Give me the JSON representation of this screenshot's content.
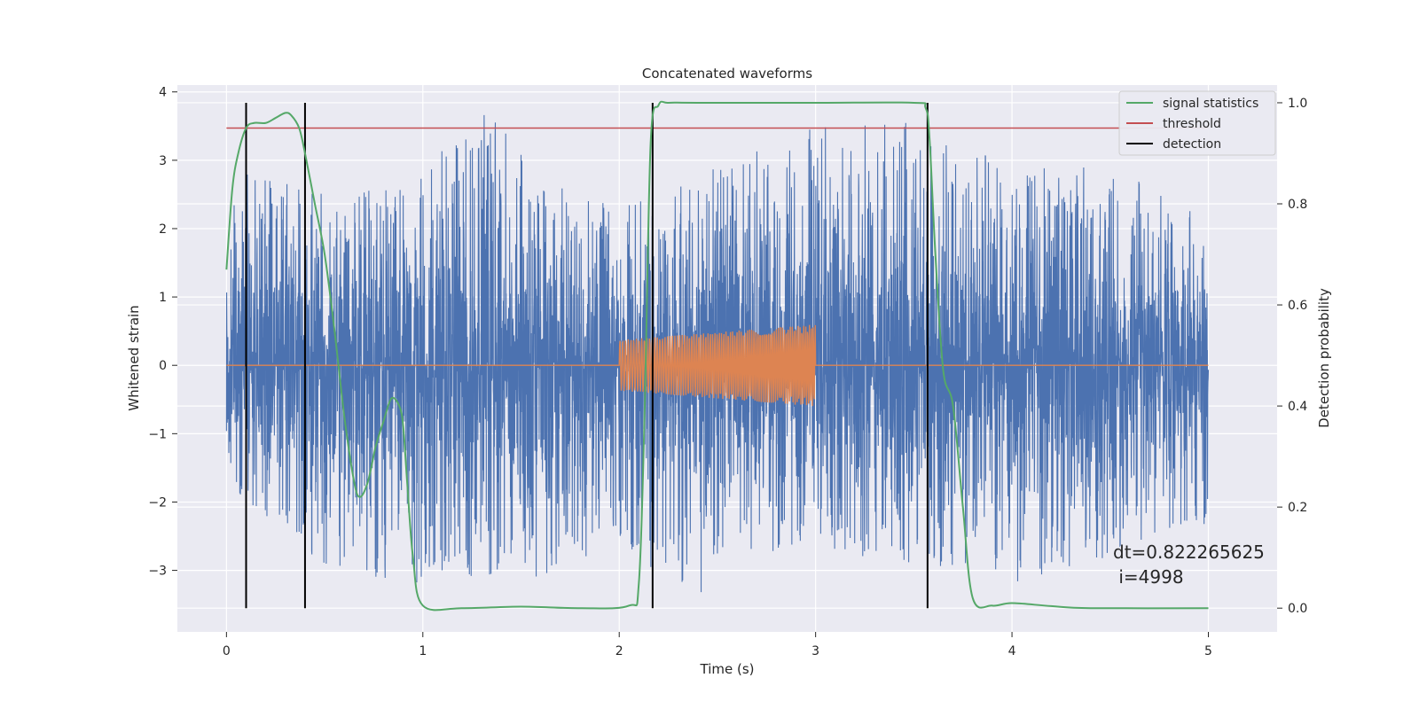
{
  "chart_data": {
    "type": "line",
    "title": "Concatenated waveforms",
    "xlabel": "Time (s)",
    "ylabel": "Whitened strain",
    "ylabel_right": "Detection probability",
    "xlim": [
      -0.25,
      5.35
    ],
    "ylim": [
      -3.9,
      4.1
    ],
    "ylim_right": [
      -0.047,
      1.035
    ],
    "x_ticks": [
      "0",
      "1",
      "2",
      "3",
      "4",
      "5"
    ],
    "x_tick_values": [
      0,
      1,
      2,
      3,
      4,
      5
    ],
    "y_ticks": [
      "4",
      "3",
      "2",
      "1",
      "0",
      "−1",
      "−2",
      "−3"
    ],
    "y_tick_values": [
      4,
      3,
      2,
      1,
      0,
      -1,
      -2,
      -3
    ],
    "y_right_ticks": [
      "1.0",
      "0.8",
      "0.6",
      "0.4",
      "0.2",
      "0.0"
    ],
    "y_right_tick_values": [
      1.0,
      0.8,
      0.6,
      0.4,
      0.2,
      0.0
    ],
    "grid": true,
    "legend_position": "top-right",
    "legend": [
      {
        "name": "signal statistics",
        "color": "#55a868"
      },
      {
        "name": "threshold",
        "color": "#c44e52"
      },
      {
        "name": "detection",
        "color": "#000000"
      }
    ],
    "annotation": [
      "dt=0.822265625",
      " i=4998"
    ],
    "series": [
      {
        "name": "strain",
        "axis": "left",
        "color": "#4c72b0",
        "description_x_range": [
          0,
          5
        ],
        "peak_envelope": [
          [
            0.0,
            2.0
          ],
          [
            0.1,
            2.9
          ],
          [
            0.33,
            2.8
          ],
          [
            0.5,
            2.5
          ],
          [
            0.9,
            2.6
          ],
          [
            1.3,
            3.75
          ],
          [
            1.6,
            2.9
          ],
          [
            2.0,
            2.3
          ],
          [
            2.5,
            2.9
          ],
          [
            3.0,
            3.5
          ],
          [
            3.5,
            3.6
          ],
          [
            4.0,
            2.9
          ],
          [
            4.5,
            3.0
          ],
          [
            5.0,
            2.1
          ]
        ],
        "trough_envelope": [
          [
            0.0,
            -2.0
          ],
          [
            0.3,
            -2.4
          ],
          [
            0.58,
            -3.2
          ],
          [
            1.13,
            -3.2
          ],
          [
            1.5,
            -3.2
          ],
          [
            2.0,
            -2.6
          ],
          [
            2.38,
            -3.55
          ],
          [
            2.5,
            -2.8
          ],
          [
            3.0,
            -2.7
          ],
          [
            3.5,
            -2.9
          ],
          [
            3.98,
            -3.25
          ],
          [
            4.5,
            -2.8
          ],
          [
            5.0,
            -2.3
          ]
        ]
      },
      {
        "name": "injected waveform",
        "axis": "left",
        "color": "#dd8452",
        "x_range": [
          0,
          5
        ],
        "chirp_x_range": [
          2.0,
          3.0
        ],
        "chirp_amplitude": [
          0.37,
          0.6
        ],
        "chirp_cycles": 70
      },
      {
        "name": "signal statistics",
        "axis": "right",
        "color": "#55a868",
        "x": [
          0.0,
          0.03,
          0.06,
          0.1,
          0.14,
          0.2,
          0.25,
          0.3,
          0.33,
          0.37,
          0.4,
          0.45,
          0.5,
          0.55,
          0.6,
          0.65,
          0.68,
          0.72,
          0.76,
          0.8,
          0.84,
          0.88,
          0.9,
          0.92,
          0.95,
          1.0,
          1.2,
          1.5,
          1.8,
          2.05,
          2.1,
          2.13,
          2.16,
          2.2,
          2.25,
          2.4,
          3.0,
          3.5,
          3.56,
          3.58,
          3.61,
          3.65,
          3.7,
          3.75,
          3.8,
          3.9,
          4.0,
          4.2,
          4.4,
          5.0
        ],
        "y": [
          0.67,
          0.83,
          0.9,
          0.95,
          0.96,
          0.96,
          0.97,
          0.98,
          0.975,
          0.95,
          0.9,
          0.8,
          0.7,
          0.55,
          0.38,
          0.25,
          0.22,
          0.25,
          0.32,
          0.37,
          0.415,
          0.4,
          0.36,
          0.25,
          0.1,
          0.005,
          0.0,
          0.003,
          0.0,
          0.005,
          0.05,
          0.4,
          0.92,
          0.995,
          1.0,
          1.0,
          1.0,
          1.0,
          0.99,
          0.93,
          0.7,
          0.47,
          0.4,
          0.2,
          0.02,
          0.005,
          0.01,
          0.004,
          0.0,
          0.0
        ]
      },
      {
        "name": "threshold",
        "axis": "right",
        "color": "#c44e52",
        "x": [
          0.0,
          5.0
        ],
        "y": [
          0.95,
          0.95
        ]
      },
      {
        "name": "detection",
        "axis": "right",
        "color": "#000000",
        "x": [
          0.1,
          0.4,
          2.17,
          3.57
        ],
        "y_range": [
          0.0,
          1.0
        ]
      }
    ]
  }
}
